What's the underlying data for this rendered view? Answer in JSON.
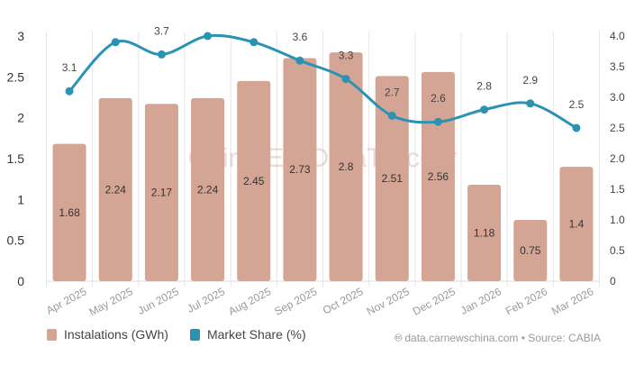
{
  "chart_data": {
    "type": "bar+line",
    "categories": [
      "Apr 2025",
      "May 2025",
      "Jun 2025",
      "Jul 2025",
      "Aug 2025",
      "Sep 2025",
      "Oct 2025",
      "Nov 2025",
      "Dec 2025",
      "Jan 2026",
      "Feb 2026",
      "Mar 2026"
    ],
    "series": [
      {
        "name": "Instalations (GWh)",
        "type": "bar",
        "axis": "left",
        "color": "#d4a494",
        "values": [
          1.68,
          2.24,
          2.17,
          2.24,
          2.45,
          2.73,
          2.8,
          2.51,
          2.56,
          1.18,
          0.75,
          1.4
        ]
      },
      {
        "name": "Market Share (%)",
        "type": "line",
        "axis": "right",
        "color": "#2a93b3",
        "values": [
          3.1,
          3.9,
          3.7,
          4.0,
          3.9,
          3.6,
          3.3,
          2.7,
          2.6,
          2.8,
          2.9,
          2.5
        ],
        "labels": [
          "3.1",
          "",
          "3.7",
          "",
          "",
          "3.6",
          "3.3",
          "2.7",
          "2.6",
          "2.8",
          "2.9",
          "2.5"
        ]
      }
    ],
    "y_left": {
      "range": [
        0,
        3
      ],
      "ticks": [
        "0",
        "0.5",
        "1",
        "1.5",
        "2",
        "2.5",
        "3"
      ]
    },
    "y_right": {
      "range": [
        0,
        4
      ],
      "ticks": [
        "0",
        "0.5",
        "1.0",
        "1.5",
        "2.0",
        "2.5",
        "3.0",
        "3.5",
        "4.0"
      ]
    },
    "grid": "vertical",
    "legend_placement": "bottom-left",
    "watermark": "China EV DataTracker"
  },
  "legend": {
    "bar": "Instalations (GWh)",
    "line": "Market Share (%)"
  },
  "source": "data.carnewschina.com • Source: CABIA"
}
